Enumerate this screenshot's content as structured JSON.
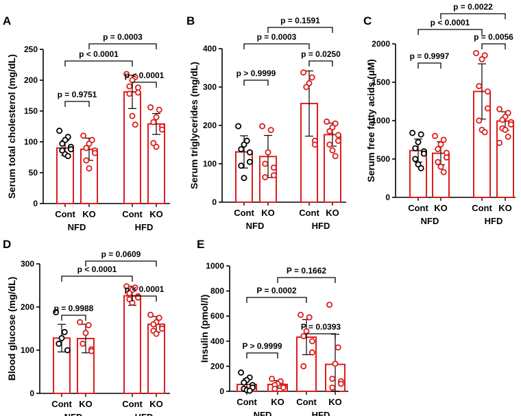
{
  "chart_data": [
    {
      "type": "bar",
      "panel": "A",
      "ylabel": "Serum total cholesterol (mg/dL)",
      "ylim": [
        0,
        250
      ],
      "yticks": [
        0,
        50,
        100,
        150,
        200,
        250
      ],
      "groups": [
        "NFD",
        "HFD"
      ],
      "categories": [
        "Cont",
        "KO",
        "Cont",
        "KO"
      ],
      "colors": [
        "#000000",
        "#dd1c1c",
        "#dd1c1c",
        "#dd1c1c"
      ],
      "values": [
        90,
        88,
        181,
        129
      ],
      "sd": [
        12,
        18,
        27,
        17
      ],
      "points": [
        [
          118,
          108,
          103,
          97,
          92,
          88,
          86,
          80,
          77
        ],
        [
          110,
          103,
          97,
          90,
          86,
          82,
          70,
          57
        ],
        [
          210,
          205,
          200,
          190,
          188,
          180,
          178,
          142,
          128
        ],
        [
          156,
          152,
          140,
          132,
          125,
          120,
          98,
          92
        ]
      ],
      "comparisons": [
        {
          "label": "p = 0.9751",
          "from": 0,
          "to": 1,
          "level": 0
        },
        {
          "label": "p < 0.0001",
          "from": 2,
          "to": 3,
          "level": 0
        },
        {
          "label": "p < 0.0001",
          "from": 0,
          "to": 2,
          "level": 1
        },
        {
          "label": "p = 0.0003",
          "from": 1,
          "to": 3,
          "level": 2
        }
      ]
    },
    {
      "type": "bar",
      "panel": "B",
      "ylabel": "Serum triglycerides (mg/dL)",
      "ylim": [
        0,
        400
      ],
      "yticks": [
        0,
        100,
        200,
        300,
        400
      ],
      "groups": [
        "NFD",
        "HFD"
      ],
      "categories": [
        "Cont",
        "KO",
        "Cont",
        "KO"
      ],
      "colors": [
        "#000000",
        "#dd1c1c",
        "#dd1c1c",
        "#dd1c1c"
      ],
      "values": [
        131,
        119,
        257,
        176
      ],
      "sd": [
        42,
        55,
        85,
        30
      ],
      "points": [
        [
          198,
          160,
          150,
          138,
          130,
          105,
          95,
          63
        ],
        [
          198,
          188,
          130,
          100,
          90,
          70,
          65
        ],
        [
          338,
          325,
          310,
          300,
          160,
          150
        ],
        [
          210,
          205,
          195,
          185,
          175,
          160,
          150,
          135,
          120
        ]
      ],
      "comparisons": [
        {
          "label": "p > 0.9999",
          "from": 0,
          "to": 1,
          "level": 0
        },
        {
          "label": "p = 0.0250",
          "from": 2,
          "to": 3,
          "level": 0
        },
        {
          "label": "p = 0.0003",
          "from": 0,
          "to": 2,
          "level": 1
        },
        {
          "label": "p = 0.1591",
          "from": 1,
          "to": 3,
          "level": 2
        }
      ]
    },
    {
      "type": "bar",
      "panel": "C",
      "ylabel": "Serum free fatty acids (μM)",
      "ylim": [
        0,
        2000
      ],
      "yticks": [
        0,
        500,
        1000,
        1500,
        2000
      ],
      "groups": [
        "NFD",
        "HFD"
      ],
      "categories": [
        "Cont",
        "KO",
        "Cont",
        "KO"
      ],
      "colors": [
        "#000000",
        "#dd1c1c",
        "#dd1c1c",
        "#dd1c1c"
      ],
      "values": [
        610,
        575,
        1380,
        995
      ],
      "sd": [
        150,
        150,
        360,
        120
      ],
      "points": [
        [
          840,
          820,
          720,
          640,
          600,
          570,
          500,
          430,
          380
        ],
        [
          800,
          750,
          690,
          630,
          580,
          520,
          460,
          400,
          330
        ],
        [
          1880,
          1850,
          1800,
          1450,
          1380,
          1160,
          1000,
          880,
          850
        ],
        [
          1150,
          1100,
          1050,
          1010,
          980,
          950,
          900,
          880,
          790,
          710
        ]
      ],
      "comparisons": [
        {
          "label": "p = 0.9997",
          "from": 0,
          "to": 1,
          "level": 0
        },
        {
          "label": "p = 0.0056",
          "from": 2,
          "to": 3,
          "level": 0
        },
        {
          "label": "p < 0.0001",
          "from": 0,
          "to": 2,
          "level": 1
        },
        {
          "label": "p = 0.0022",
          "from": 1,
          "to": 3,
          "level": 2
        }
      ]
    },
    {
      "type": "bar",
      "panel": "D",
      "ylabel": "Blood glucose (mg/dL)",
      "ylim": [
        0,
        300
      ],
      "yticks": [
        0,
        100,
        200,
        300
      ],
      "groups": [
        "NFD",
        "HFD"
      ],
      "categories": [
        "Cont",
        "KO",
        "Cont",
        "KO"
      ],
      "colors": [
        "#000000",
        "#dd1c1c",
        "#dd1c1c",
        "#dd1c1c"
      ],
      "values": [
        128,
        127,
        226,
        160
      ],
      "sd": [
        32,
        33,
        22,
        18
      ],
      "points": [
        [
          188,
          142,
          128,
          115,
          100
        ],
        [
          165,
          158,
          140,
          115,
          102,
          98
        ],
        [
          248,
          245,
          240,
          232,
          225,
          222,
          218,
          210
        ],
        [
          182,
          175,
          165,
          160,
          155,
          150,
          145,
          138
        ]
      ],
      "comparisons": [
        {
          "label": "p = 0.9988",
          "from": 0,
          "to": 1,
          "level": 0
        },
        {
          "label": "p < 0.0001",
          "from": 2,
          "to": 3,
          "level": 0
        },
        {
          "label": "p < 0.0001",
          "from": 0,
          "to": 2,
          "level": 1
        },
        {
          "label": "p = 0.0609",
          "from": 1,
          "to": 3,
          "level": 2
        }
      ]
    },
    {
      "type": "bar",
      "panel": "E",
      "ylabel": "Insulin (pmol/l)",
      "ylim": [
        0,
        1000
      ],
      "yticks": [
        0,
        200,
        400,
        600,
        800,
        1000
      ],
      "groups": [
        "NFD",
        "HFD"
      ],
      "categories": [
        "Cont",
        "KO",
        "Cont",
        "KO"
      ],
      "colors": [
        "#000000",
        "#dd1c1c",
        "#dd1c1c",
        "#dd1c1c"
      ],
      "values": [
        55,
        55,
        432,
        215
      ],
      "sd": [
        45,
        30,
        140,
        240
      ],
      "points": [
        [
          150,
          110,
          90,
          70,
          50,
          30,
          20,
          10,
          5
        ],
        [
          100,
          80,
          60,
          50,
          40,
          30,
          20
        ],
        [
          610,
          590,
          480,
          440,
          400,
          310,
          200
        ],
        [
          690,
          350,
          220,
          100,
          80,
          60,
          30
        ]
      ],
      "comparisons": [
        {
          "label": "P > 0.9999",
          "from": 0,
          "to": 1,
          "level": 0
        },
        {
          "label": "P = 0.0393",
          "from": 2,
          "to": 3,
          "level": 0
        },
        {
          "label": "P = 0.0002",
          "from": 0,
          "to": 2,
          "level": 1
        },
        {
          "label": "P = 0.1662",
          "from": 1,
          "to": 3,
          "level": 2
        }
      ]
    }
  ]
}
